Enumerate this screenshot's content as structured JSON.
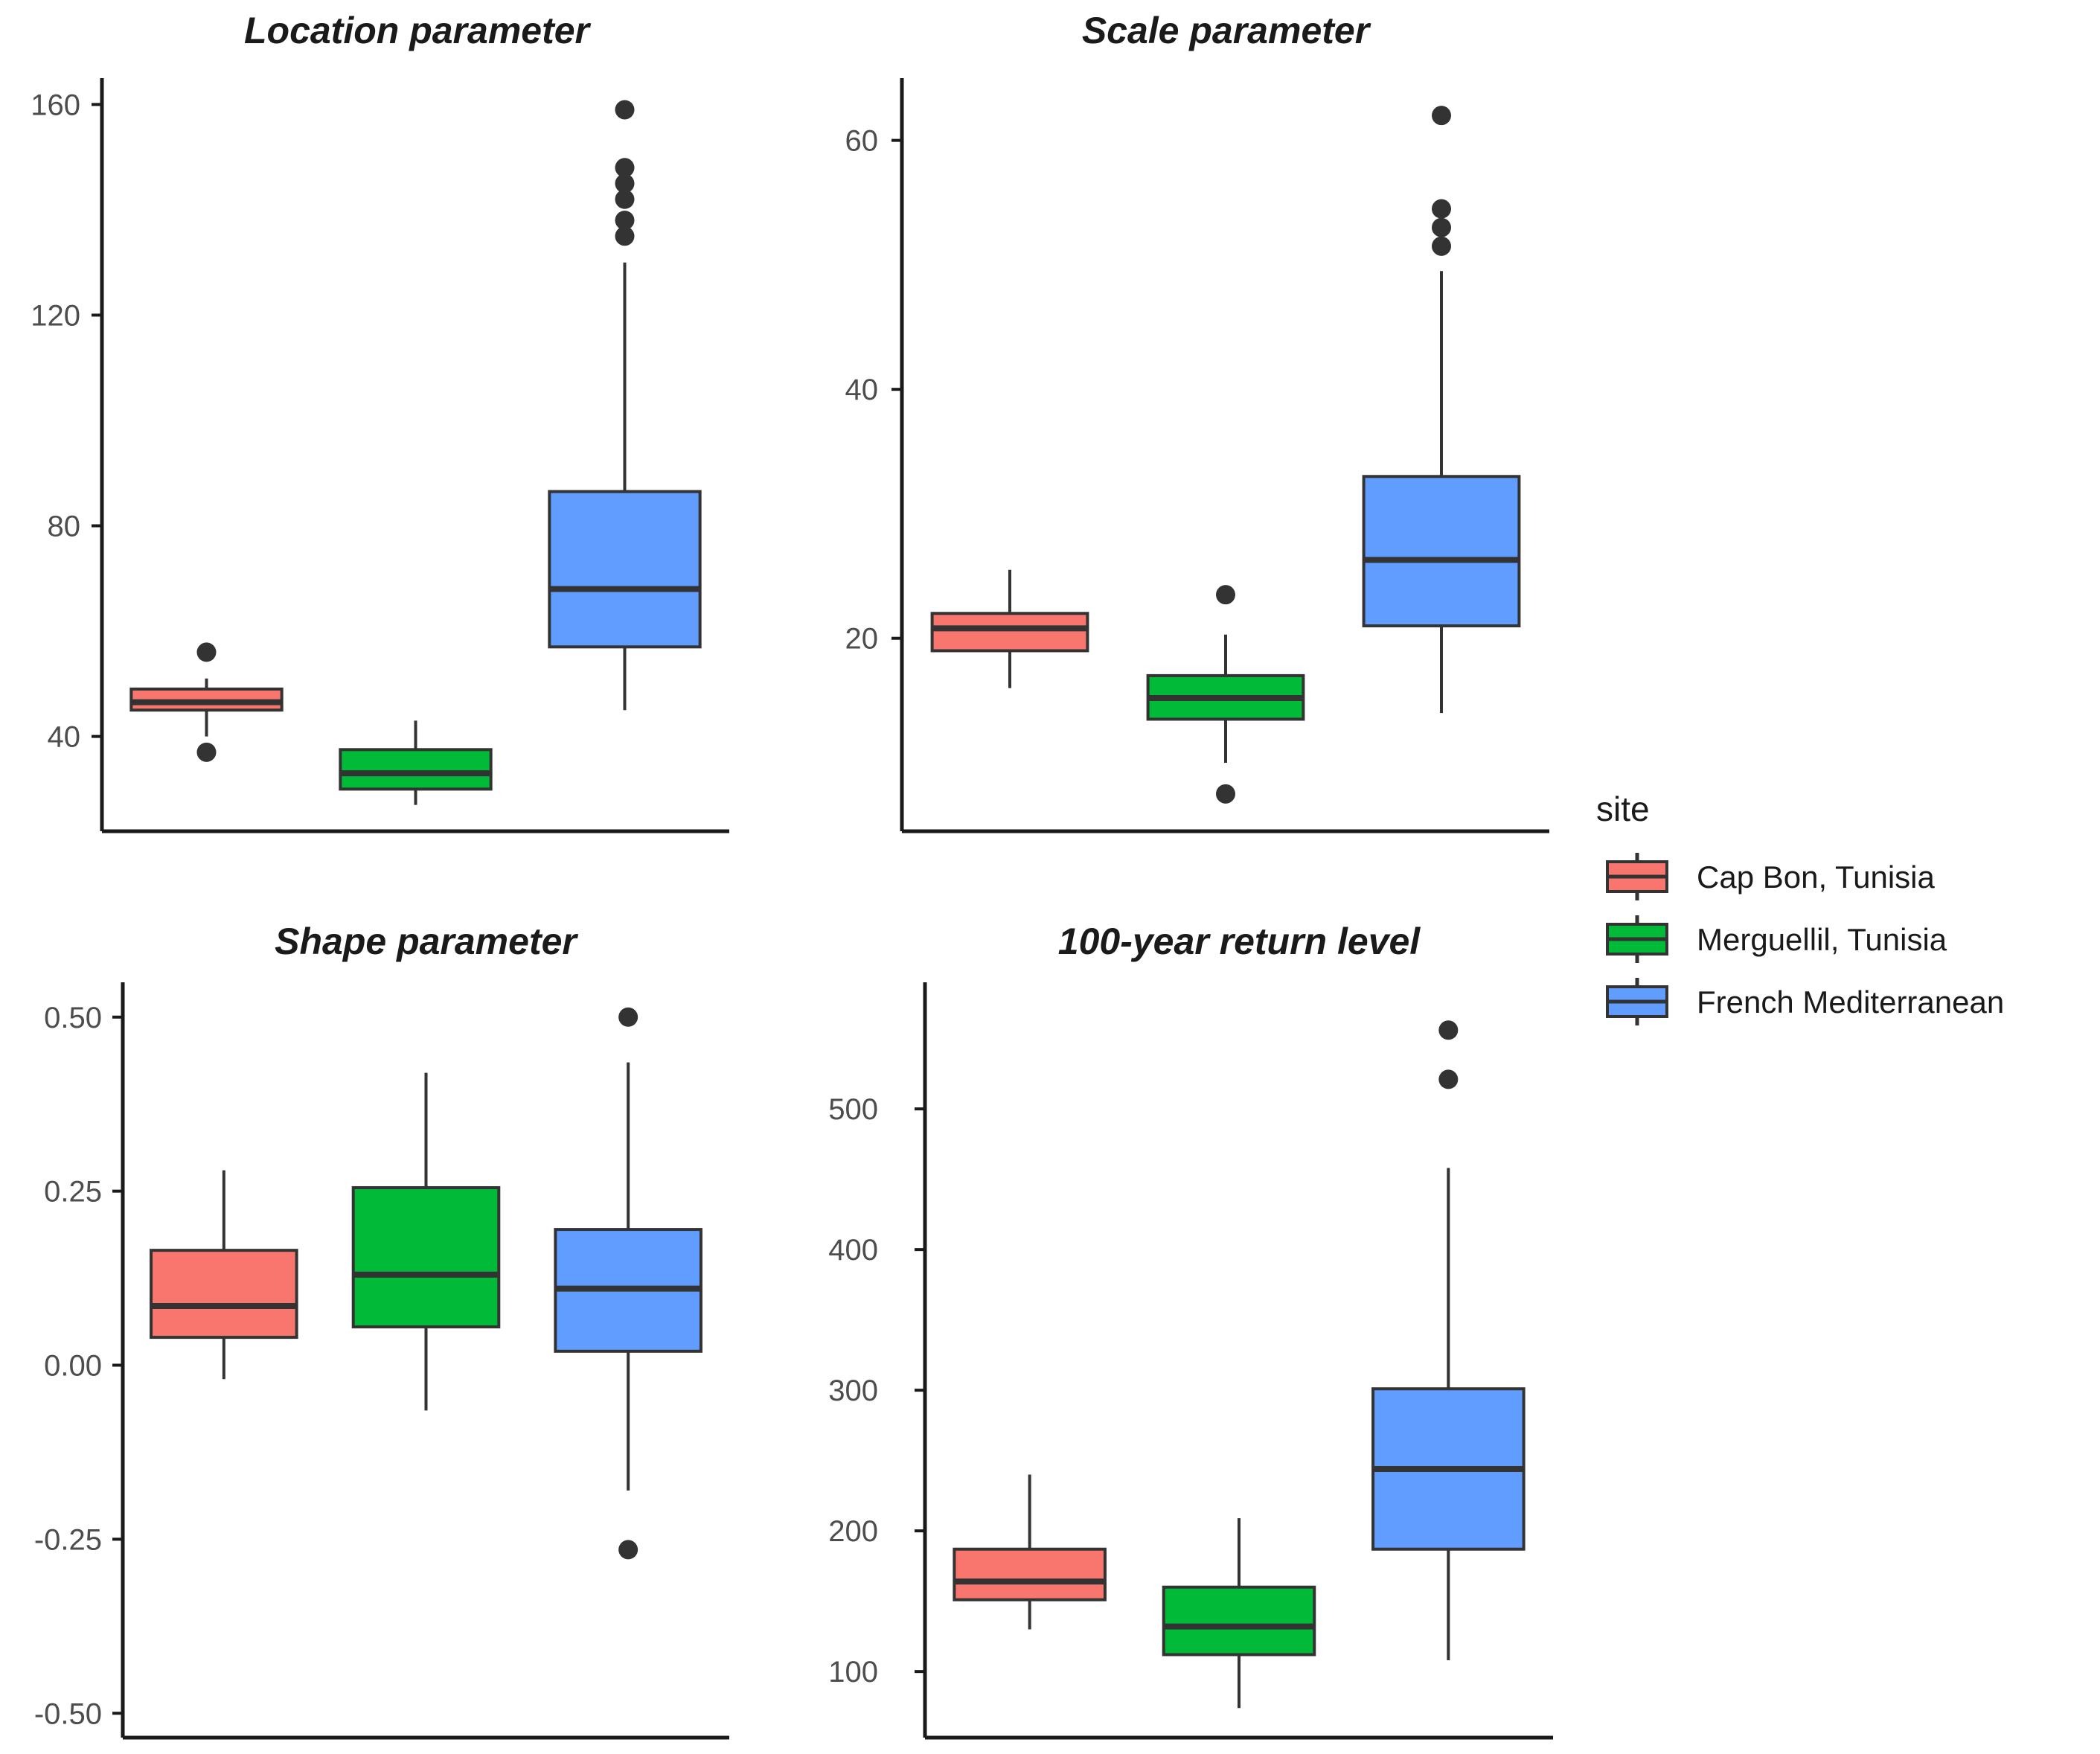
{
  "chart_data": [
    {
      "type": "box",
      "title": "Location parameter",
      "ylim": [
        22,
        165
      ],
      "yticks": [
        40,
        80,
        120,
        160
      ],
      "ytick_labels": [
        "40",
        "80",
        "120",
        "160"
      ],
      "boxes": [
        {
          "site": "Cap Bon, Tunisia",
          "whisker_low": 40,
          "q1": 45,
          "median": 46.5,
          "q3": 49,
          "whisker_high": 51,
          "outliers": [
            37,
            56
          ]
        },
        {
          "site": "Merguellil, Tunisia",
          "whisker_low": 27,
          "q1": 30,
          "median": 33,
          "q3": 37.5,
          "whisker_high": 43,
          "outliers": []
        },
        {
          "site": "French Mediterranean",
          "whisker_low": 45,
          "q1": 57,
          "median": 68,
          "q3": 86.5,
          "whisker_high": 130,
          "outliers": [
            135,
            138,
            142,
            145,
            148,
            159
          ]
        }
      ]
    },
    {
      "type": "box",
      "title": "Scale parameter",
      "ylim": [
        4.5,
        65
      ],
      "yticks": [
        20,
        40,
        60
      ],
      "ytick_labels": [
        "20",
        "40",
        "60"
      ],
      "boxes": [
        {
          "site": "Cap Bon, Tunisia",
          "whisker_low": 16,
          "q1": 19,
          "median": 20.8,
          "q3": 22,
          "whisker_high": 25.5,
          "outliers": []
        },
        {
          "site": "Merguellil, Tunisia",
          "whisker_low": 10,
          "q1": 13.5,
          "median": 15.2,
          "q3": 17,
          "whisker_high": 20.3,
          "outliers": [
            7.5,
            23.5
          ]
        },
        {
          "site": "French Mediterranean",
          "whisker_low": 14,
          "q1": 21,
          "median": 26.3,
          "q3": 33,
          "whisker_high": 49.5,
          "outliers": [
            51.5,
            53,
            54.5,
            62
          ]
        }
      ]
    },
    {
      "type": "box",
      "title": "Shape parameter",
      "ylim": [
        -0.535,
        0.55
      ],
      "yticks": [
        -0.5,
        -0.25,
        0,
        0.25,
        0.5
      ],
      "ytick_labels": [
        "-0.50",
        "-0.25",
        "0.00",
        "0.25",
        "0.50"
      ],
      "boxes": [
        {
          "site": "Cap Bon, Tunisia",
          "whisker_low": -0.02,
          "q1": 0.04,
          "median": 0.085,
          "q3": 0.165,
          "whisker_high": 0.28,
          "outliers": []
        },
        {
          "site": "Merguellil, Tunisia",
          "whisker_low": -0.065,
          "q1": 0.055,
          "median": 0.13,
          "q3": 0.255,
          "whisker_high": 0.42,
          "outliers": []
        },
        {
          "site": "French Mediterranean",
          "whisker_low": -0.18,
          "q1": 0.02,
          "median": 0.11,
          "q3": 0.195,
          "whisker_high": 0.435,
          "outliers": [
            -0.265,
            0.5
          ]
        }
      ]
    },
    {
      "type": "box",
      "title": "100-year return level",
      "ylim": [
        53,
        590
      ],
      "yticks": [
        100,
        200,
        300,
        400,
        500
      ],
      "ytick_labels": [
        "100",
        "200",
        "300",
        "400",
        "500"
      ],
      "boxes": [
        {
          "site": "Cap Bon, Tunisia",
          "whisker_low": 130,
          "q1": 151,
          "median": 164,
          "q3": 187,
          "whisker_high": 240,
          "outliers": []
        },
        {
          "site": "Merguellil, Tunisia",
          "whisker_low": 74,
          "q1": 112,
          "median": 132,
          "q3": 160,
          "whisker_high": 209,
          "outliers": []
        },
        {
          "site": "French Mediterranean",
          "whisker_low": 108,
          "q1": 187,
          "median": 244,
          "q3": 301,
          "whisker_high": 458,
          "outliers": [
            521,
            556
          ]
        }
      ]
    }
  ],
  "legend": {
    "title": "site",
    "items": [
      {
        "label": "Cap Bon, Tunisia",
        "color": "#f8766d"
      },
      {
        "label": "Merguellil, Tunisia",
        "color": "#00ba38"
      },
      {
        "label": "French Mediterranean",
        "color": "#619cff"
      }
    ]
  },
  "colors": {
    "box_edge": "#333333",
    "axis": "#1a1a1a",
    "outlier": "#333333"
  }
}
